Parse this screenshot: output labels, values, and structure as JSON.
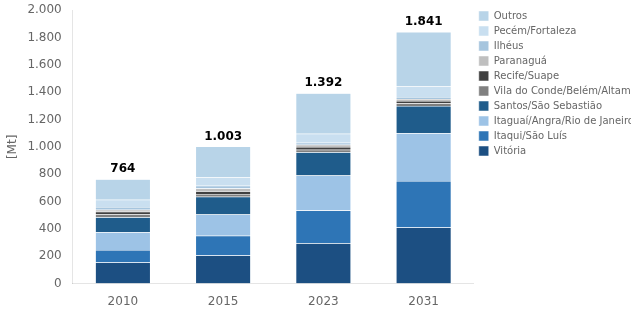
{
  "chart_data": {
    "type": "bar",
    "stacked": true,
    "categories": [
      "2010",
      "2015",
      "2023",
      "2031"
    ],
    "series": [
      {
        "name": "Vitória",
        "color": "#1c4f82",
        "values": [
          155,
          205,
          295,
          410
        ]
      },
      {
        "name": "Itaqui/São Luís",
        "color": "#2e75b6",
        "values": [
          90,
          145,
          240,
          340
        ]
      },
      {
        "name": "Itaguaí/Angra/Rio de Janeiro",
        "color": "#9dc3e6",
        "values": [
          130,
          155,
          255,
          350
        ]
      },
      {
        "name": "Santos/São Sebastião",
        "color": "#1f5c8b",
        "values": [
          110,
          130,
          170,
          200
        ]
      },
      {
        "name": "Vila do Conde/Belém/Altamira",
        "color": "#808080",
        "values": [
          20,
          20,
          20,
          20
        ]
      },
      {
        "name": "Recife/Suape",
        "color": "#404040",
        "values": [
          20,
          20,
          20,
          15
        ]
      },
      {
        "name": "Paranaguá",
        "color": "#bfbfbf",
        "values": [
          15,
          20,
          15,
          15
        ]
      },
      {
        "name": "Ilhéus",
        "color": "#a6c5de",
        "values": [
          20,
          20,
          15,
          15
        ]
      },
      {
        "name": "Pecém/Fortaleza",
        "color": "#c9dff0",
        "values": [
          54,
          63,
          67,
          76
        ]
      },
      {
        "name": "Outros",
        "color": "#b8d4e8",
        "values": [
          150,
          225,
          295,
          400
        ]
      }
    ],
    "totals": [
      {
        "value": 764,
        "label": "764"
      },
      {
        "value": 1003,
        "label": "1.003"
      },
      {
        "value": 1392,
        "label": "1.392"
      },
      {
        "value": 1841,
        "label": "1.841"
      }
    ],
    "ylabel": "[Mt]",
    "ylim": [
      0,
      2000
    ],
    "yticks": [
      0,
      200,
      400,
      600,
      800,
      {
        "value": 1000,
        "label": "1.000"
      },
      {
        "value": 1200,
        "label": "1.200"
      },
      {
        "value": 1400,
        "label": "1.400"
      },
      {
        "value": 1600,
        "label": "1.600"
      },
      {
        "value": 1800,
        "label": "1.800"
      },
      {
        "value": 2000,
        "label": "2.000"
      }
    ],
    "grid": false,
    "legend": "right"
  }
}
